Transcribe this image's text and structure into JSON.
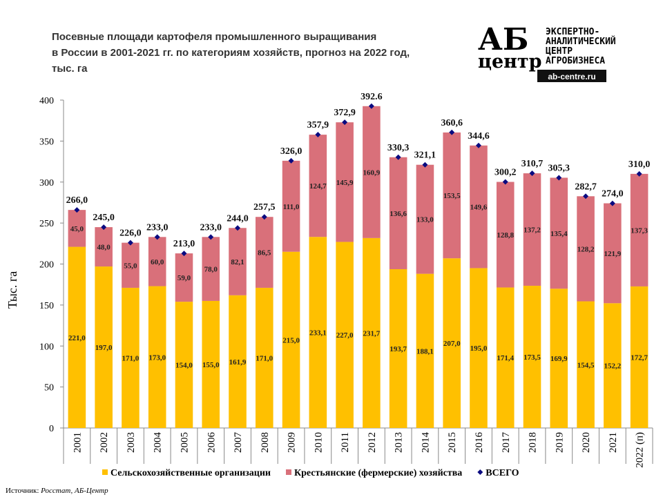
{
  "chart_data": {
    "type": "bar",
    "stacked": true,
    "title": [
      "Посевные площади картофеля промышленного выращивания",
      "в России в 2001-2021 гг. по категориям хозяйств, прогноз на 2022 год,",
      "тыс. га"
    ],
    "y_label": "Тыс. га",
    "categories": [
      "2001",
      "2002",
      "2003",
      "2004",
      "2005",
      "2006",
      "2007",
      "2008",
      "2009",
      "2010",
      "2011",
      "2012",
      "2013",
      "2014",
      "2015",
      "2016",
      "2017",
      "2018",
      "2019",
      "2020",
      "2021",
      "2022 (п)"
    ],
    "series": [
      {
        "name": "Сельскохозяйственные организации",
        "color": "#FFC000",
        "stack": true,
        "values": [
          221.0,
          197.0,
          171.0,
          173.0,
          154.0,
          155.0,
          161.9,
          171.0,
          215.0,
          233.1,
          227.0,
          231.7,
          193.7,
          188.1,
          207.0,
          195.0,
          171.4,
          173.5,
          169.9,
          154.5,
          152.2,
          172.7
        ],
        "value_labels": [
          "221,0",
          "197,0",
          "171,0",
          "173,0",
          "154,0",
          "155,0",
          "161,9",
          "171,0",
          "215,0",
          "233,1",
          "227,0",
          "231,7",
          "193,7",
          "188,1",
          "207,0",
          "195,0",
          "171,4",
          "173,5",
          "169,9",
          "154,5",
          "152,2",
          "172,7"
        ]
      },
      {
        "name": "Крестьянские (фермерские) хозяйства",
        "color": "#D9707A",
        "stack": true,
        "values": [
          45.0,
          48.0,
          55.0,
          60.0,
          59.0,
          78.0,
          82.1,
          86.5,
          111.0,
          124.7,
          145.9,
          160.9,
          136.6,
          133.0,
          153.5,
          149.6,
          128.8,
          137.2,
          135.4,
          128.2,
          121.9,
          137.3
        ],
        "value_labels": [
          "45,0",
          "48,0",
          "55,0",
          "60,0",
          "59,0",
          "78,0",
          "82,1",
          "86,5",
          "111,0",
          "124,7",
          "145,9",
          "160,9",
          "136,6",
          "133,0",
          "153,5",
          "149,6",
          "128,8",
          "137,2",
          "135,4",
          "128,2",
          "121,9",
          "137,3"
        ]
      },
      {
        "name": "ВСЕГО",
        "color": "#0A0A80",
        "stack": false,
        "marker": "diamond",
        "values": [
          266.0,
          245.0,
          226.0,
          233.0,
          213.0,
          233.0,
          244.0,
          257.5,
          326.0,
          357.9,
          372.9,
          392.6,
          330.3,
          321.1,
          360.6,
          344.6,
          300.2,
          310.7,
          305.3,
          282.7,
          274.0,
          310.0
        ],
        "value_labels": [
          "266,0",
          "245,0",
          "226,0",
          "233,0",
          "213,0",
          "233,0",
          "244,0",
          "257,5",
          "326,0",
          "357,9",
          "372,9",
          "392.6",
          "330,3",
          "321,1",
          "360,6",
          "344,6",
          "300,2",
          "310,7",
          "305,3",
          "282,7",
          "274,0",
          "310,0"
        ]
      }
    ],
    "ylim": [
      0,
      400
    ],
    "yticks": [
      0,
      50,
      100,
      150,
      200,
      250,
      300,
      350,
      400
    ],
    "grid": false,
    "legend": "bottom"
  },
  "logo": {
    "mark": "АБ",
    "mark2": "центр",
    "lines": [
      "ЭКСПЕРТНО-",
      "АНАЛИТИЧЕСКИЙ",
      "ЦЕНТР",
      "АГРОБИЗНЕСА"
    ],
    "url": "ab-centre.ru"
  },
  "source": {
    "label": "Источник:",
    "text": "Росстат, АБ-Центр"
  }
}
